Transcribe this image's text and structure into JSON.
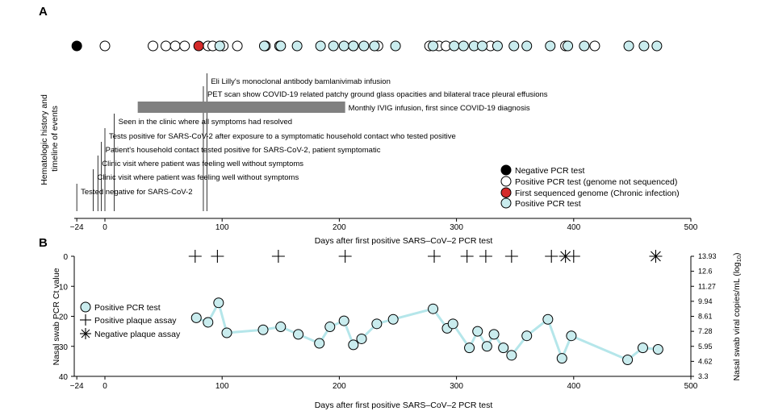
{
  "panel_a": {
    "label": "A",
    "ylabel_line1": "Hematologic history and",
    "ylabel_line2": "timeline of events",
    "events": [
      {
        "day": 87,
        "text": "Eli Lilly's monoclonal antibody bamlanivimab infusion"
      },
      {
        "day": 84,
        "text": "PET scan show COVID-19 related patchy ground glass opacities and bilateral trace pleural effusions"
      },
      {
        "day": 28,
        "end_day": 205,
        "text": "Monthly IVIG infusion, first since COVID-19 diagnosis",
        "bar": true
      },
      {
        "day": 8,
        "text": "Seen in the clinic where all symptoms had resolved"
      },
      {
        "day": 0,
        "text": "Tests positive for SARS-CoV-2 after exposure to a symptomatic household contact who tested positive"
      },
      {
        "day": -3,
        "text": "Patient's household contact tested positive for SARS-CoV-2, patient symptomatic"
      },
      {
        "day": -6,
        "text": "Clinic visit where patient was feeling well without symptoms"
      },
      {
        "day": -10,
        "text": "Clinic visit where patient was feeling well without symptoms"
      },
      {
        "day": -24,
        "text": "Tested negative for SARS-CoV-2"
      }
    ],
    "legend": [
      {
        "key": "negative",
        "label": "Negative PCR test"
      },
      {
        "key": "white",
        "label": "Positive PCR test (genome not sequenced)"
      },
      {
        "key": "red",
        "label": "First sequenced genome (Chronic infection)"
      },
      {
        "key": "cyan",
        "label": "Positive PCR test"
      }
    ],
    "xlabel": "Days after first positive SARS–CoV–2 PCR test"
  },
  "panel_b": {
    "label": "B",
    "ylabel_left": "Nasal swab PCR Ct value",
    "ylabel_right": "Nasal swab viral copies/mL (log",
    "ylabel_right_sub": "10",
    "ylabel_right_close": ")",
    "right_ticks": [
      "13.93",
      "12.6",
      "11.27",
      "9.94",
      "8.61",
      "7.28",
      "5.95",
      "4.62",
      "3.3"
    ],
    "legend": [
      {
        "key": "circle",
        "label": "Positive PCR test"
      },
      {
        "key": "plus",
        "label": "Positive plaque assay"
      },
      {
        "key": "star",
        "label": "Negative plaque assay"
      }
    ],
    "xlabel": "Days after first positive SARS–CoV–2 PCR test"
  },
  "colors": {
    "cyan_fill": "#c9ecee",
    "line": "#b5e6ea",
    "red": "#d42a2a",
    "bar": "#808080"
  },
  "chart_data": [
    {
      "type": "scatter",
      "panel": "A",
      "xlim": [
        -24,
        500
      ],
      "x_ticks": [
        -24,
        0,
        100,
        200,
        300,
        400,
        500
      ],
      "series": [
        {
          "name": "Negative PCR test",
          "x": [
            -24
          ]
        },
        {
          "name": "Positive PCR test (genome not sequenced)",
          "x": [
            0,
            41,
            52,
            60,
            68,
            88,
            92,
            101,
            113,
            137,
            149,
            212,
            233,
            277,
            285,
            291,
            329,
            393,
            418
          ]
        },
        {
          "name": "First sequenced genome (Chronic infection)",
          "x": [
            80
          ]
        },
        {
          "name": "Positive PCR test",
          "x": [
            98,
            136,
            150,
            164,
            184,
            195,
            204,
            212,
            221,
            230,
            248,
            280,
            298,
            306,
            315,
            322,
            335,
            349,
            360,
            380,
            395,
            409,
            447,
            460,
            471
          ]
        }
      ]
    },
    {
      "type": "scatter",
      "panel": "B",
      "xlim": [
        -24,
        500
      ],
      "ylim": [
        0,
        40
      ],
      "y_inverted": true,
      "x_ticks": [
        -24,
        0,
        100,
        200,
        300,
        400,
        500
      ],
      "y_ticks": [
        0,
        10,
        20,
        30,
        40
      ],
      "series": [
        {
          "name": "Positive PCR test",
          "x": [
            78,
            88,
            97,
            104,
            135,
            150,
            165,
            183,
            192,
            204,
            212,
            219,
            232,
            246,
            280,
            292,
            297,
            311,
            318,
            326,
            332,
            340,
            347,
            360,
            378,
            390,
            398,
            446,
            459,
            472
          ],
          "y": [
            20.5,
            22,
            15.5,
            25.5,
            24.5,
            23.5,
            26,
            29,
            23.5,
            21.5,
            29.5,
            27.5,
            22.5,
            21,
            17.5,
            24,
            22.5,
            30.5,
            25,
            30,
            26,
            30.5,
            33,
            26.5,
            21,
            34,
            26.5,
            34.5,
            30.5,
            31
          ]
        },
        {
          "name": "Positive plaque assay",
          "x": [
            77,
            96,
            148,
            205,
            281,
            309,
            325,
            347,
            381,
            400
          ],
          "y": [
            0,
            0,
            0,
            0,
            0,
            0,
            0,
            0,
            0,
            0
          ]
        },
        {
          "name": "Negative plaque assay",
          "x": [
            393,
            470
          ],
          "y": [
            0,
            0
          ]
        }
      ]
    }
  ]
}
